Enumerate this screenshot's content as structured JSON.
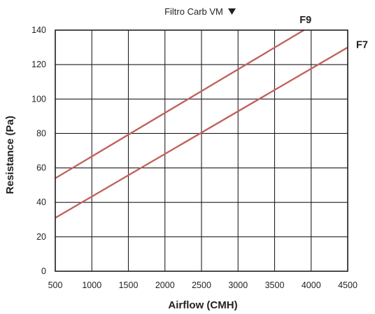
{
  "chart_data": {
    "type": "line",
    "title": "Filtro Carb VM",
    "xlabel": "Airflow (CMH)",
    "ylabel": "Resistance (Pa)",
    "xlim": [
      500,
      4500
    ],
    "ylim": [
      0,
      140
    ],
    "xticks": [
      500,
      1000,
      1500,
      2000,
      2500,
      3000,
      3500,
      4000,
      4500
    ],
    "yticks": [
      0,
      20,
      40,
      60,
      80,
      100,
      120,
      140
    ],
    "grid": true,
    "series": [
      {
        "name": "F9",
        "color": "#c0605a",
        "x": [
          500,
          3900
        ],
        "y": [
          54,
          140
        ]
      },
      {
        "name": "F7",
        "color": "#c0605a",
        "x": [
          500,
          4500
        ],
        "y": [
          31,
          130
        ]
      }
    ]
  },
  "ui": {
    "dropdown_icon": "triangle-down-icon"
  }
}
